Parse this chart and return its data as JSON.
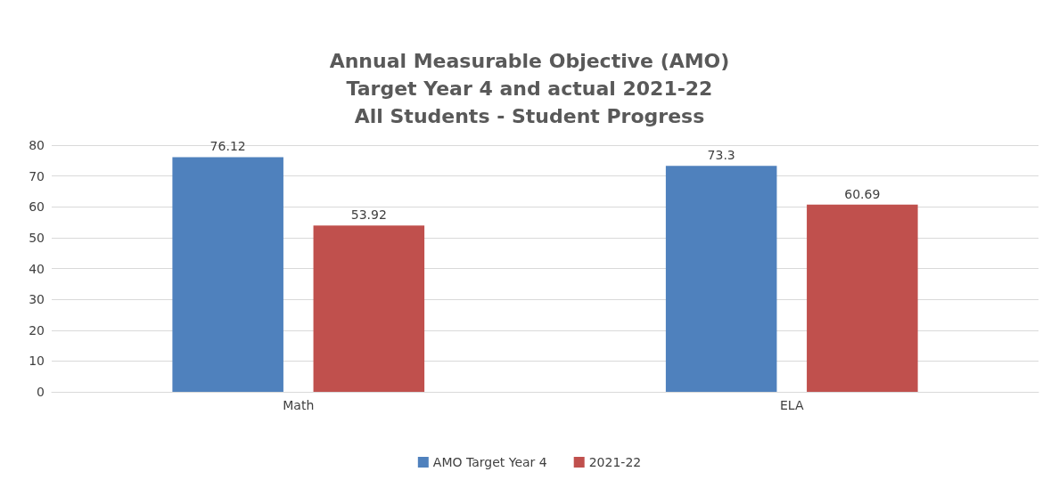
{
  "chart_data": {
    "type": "bar",
    "title": "Annual Measurable Objective (AMO)\nTarget Year 4 and actual 2021-22\nAll Students - Student Progress",
    "categories": [
      "Math",
      "ELA"
    ],
    "series": [
      {
        "name": "AMO Target Year 4",
        "color": "#4f81bd",
        "values": [
          76.12,
          73.3
        ]
      },
      {
        "name": "2021-22",
        "color": "#c0504d",
        "values": [
          53.92,
          60.69
        ]
      }
    ],
    "ylim": [
      0,
      80
    ],
    "yticks": [
      0,
      10,
      20,
      30,
      40,
      50,
      60,
      70,
      80
    ],
    "grid": "y",
    "legend": "bottom",
    "data_labels": true
  }
}
